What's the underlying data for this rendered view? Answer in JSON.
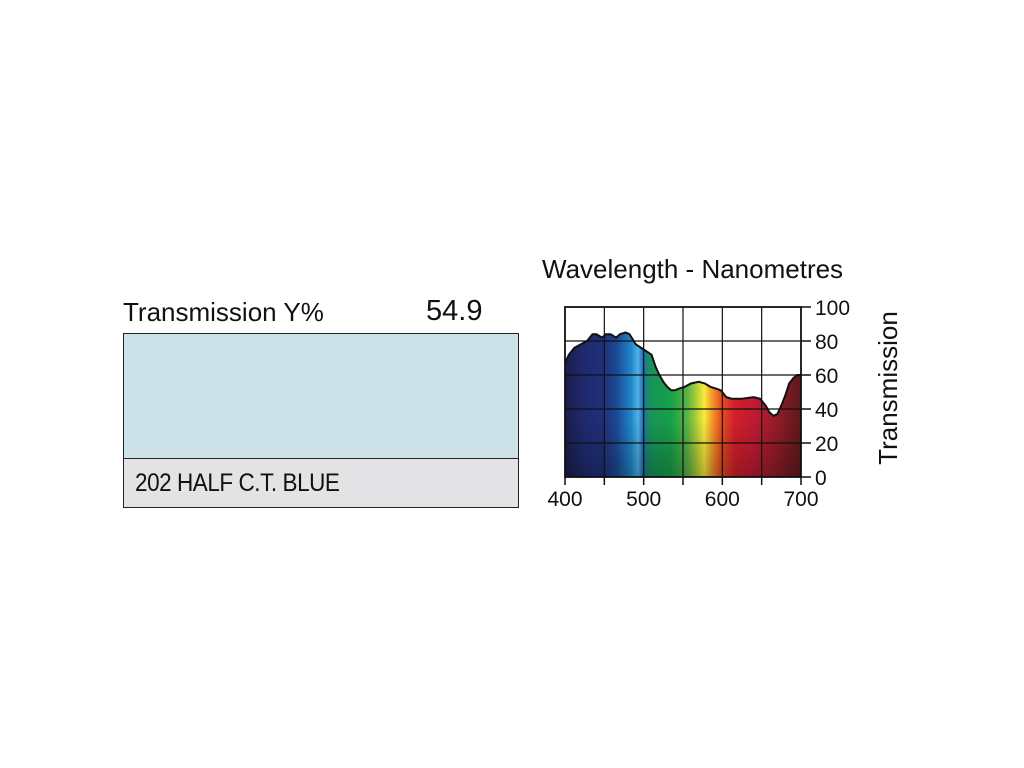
{
  "filter": {
    "transmission_label": "Transmission Y%",
    "transmission_value": "54.9",
    "name": "202 HALF C.T. BLUE",
    "swatch_color": "#cde1e8"
  },
  "chart_data": {
    "type": "area",
    "title": "Wavelength - Nanometres",
    "xlabel": "",
    "ylabel": "Transmission",
    "xlim": [
      400,
      700
    ],
    "ylim": [
      0,
      100
    ],
    "x_ticks": [
      400,
      500,
      600,
      700
    ],
    "y_ticks": [
      0,
      20,
      40,
      60,
      80,
      100
    ],
    "grid": true,
    "series": [
      {
        "x": [
          400,
          405,
          412,
          420,
          428,
          435,
          440,
          447,
          452,
          458,
          465,
          470,
          477,
          482,
          490,
          500,
          510,
          515,
          520,
          525,
          530,
          535,
          540,
          545,
          552,
          560,
          570,
          578,
          585,
          592,
          598,
          605,
          612,
          625,
          640,
          648,
          655,
          660,
          665,
          670,
          675,
          680,
          685,
          690,
          695,
          700
        ],
        "values": [
          67,
          72,
          76,
          78,
          80,
          84,
          84,
          82,
          84,
          84,
          82,
          84,
          85,
          84,
          78,
          75,
          72,
          65,
          60,
          56,
          53,
          51,
          51,
          52,
          53,
          55,
          56,
          55,
          53,
          52,
          51,
          47,
          46,
          46,
          47,
          46,
          42,
          38,
          36,
          37,
          42,
          48,
          55,
          58,
          60,
          60
        ]
      }
    ]
  }
}
